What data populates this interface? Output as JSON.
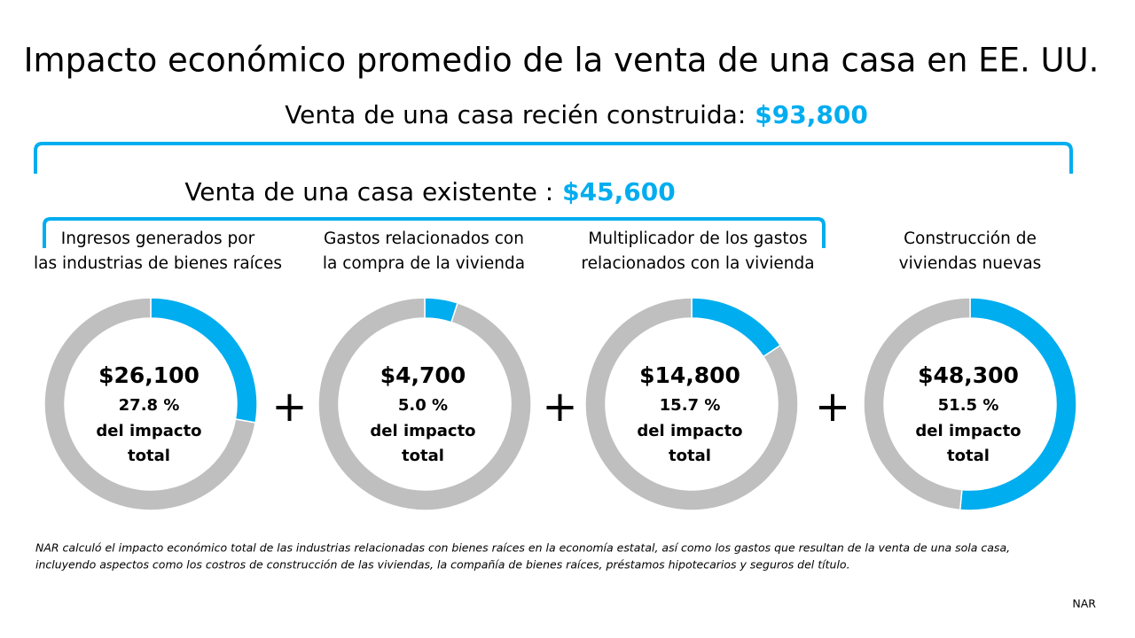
{
  "title": "Impacto económico promedio de la venta de una casa en EE. UU.",
  "new_home": {
    "label": "Venta de una casa recién construida:",
    "value_label": "$93,800"
  },
  "existing_home": {
    "label": "Venta de una casa existente :",
    "value_label": "$45,600"
  },
  "operator": "+",
  "chart_data": [
    {
      "type": "pie",
      "donut": true,
      "title": [
        "Ingresos generados por",
        "las industrias de bienes raíces"
      ],
      "amount": "$26,100",
      "values": [
        27.8,
        72.2
      ],
      "value_labels": [
        "27.8 %",
        null
      ],
      "colors": [
        "#00adef",
        "#bfbfbf"
      ],
      "caption": [
        "del impacto",
        "total"
      ]
    },
    {
      "type": "pie",
      "donut": true,
      "title": [
        "Gastos relacionados con",
        "la compra de la vivienda"
      ],
      "amount": "$4,700",
      "values": [
        5.0,
        95.0
      ],
      "value_labels": [
        "5.0 %",
        null
      ],
      "colors": [
        "#00adef",
        "#bfbfbf"
      ],
      "caption": [
        "del impacto",
        "total"
      ]
    },
    {
      "type": "pie",
      "donut": true,
      "title": [
        "Multiplicador de los gastos",
        "relacionados con la vivienda"
      ],
      "amount": "$14,800",
      "values": [
        15.7,
        84.3
      ],
      "value_labels": [
        "15.7 %",
        null
      ],
      "colors": [
        "#00adef",
        "#bfbfbf"
      ],
      "caption": [
        "del impacto",
        "total"
      ]
    },
    {
      "type": "pie",
      "donut": true,
      "title": [
        "Construcción de",
        "viviendas nuevas"
      ],
      "amount": "$48,300",
      "values": [
        51.5,
        48.5
      ],
      "value_labels": [
        "51.5 %",
        null
      ],
      "colors": [
        "#00adef",
        "#bfbfbf"
      ],
      "caption": [
        "del impacto",
        "total"
      ]
    }
  ],
  "footnote": [
    "NAR calculó el impacto económico total de las industrias relacionadas con bienes raíces en la economía estatal, así como los gastos que resultan de la venta de una sola casa,",
    "incluyendo aspectos como los costros de construcción de las viviendas, la compañía de bienes raíces, préstamos hipotecarios y seguros del título."
  ],
  "source": "NAR"
}
